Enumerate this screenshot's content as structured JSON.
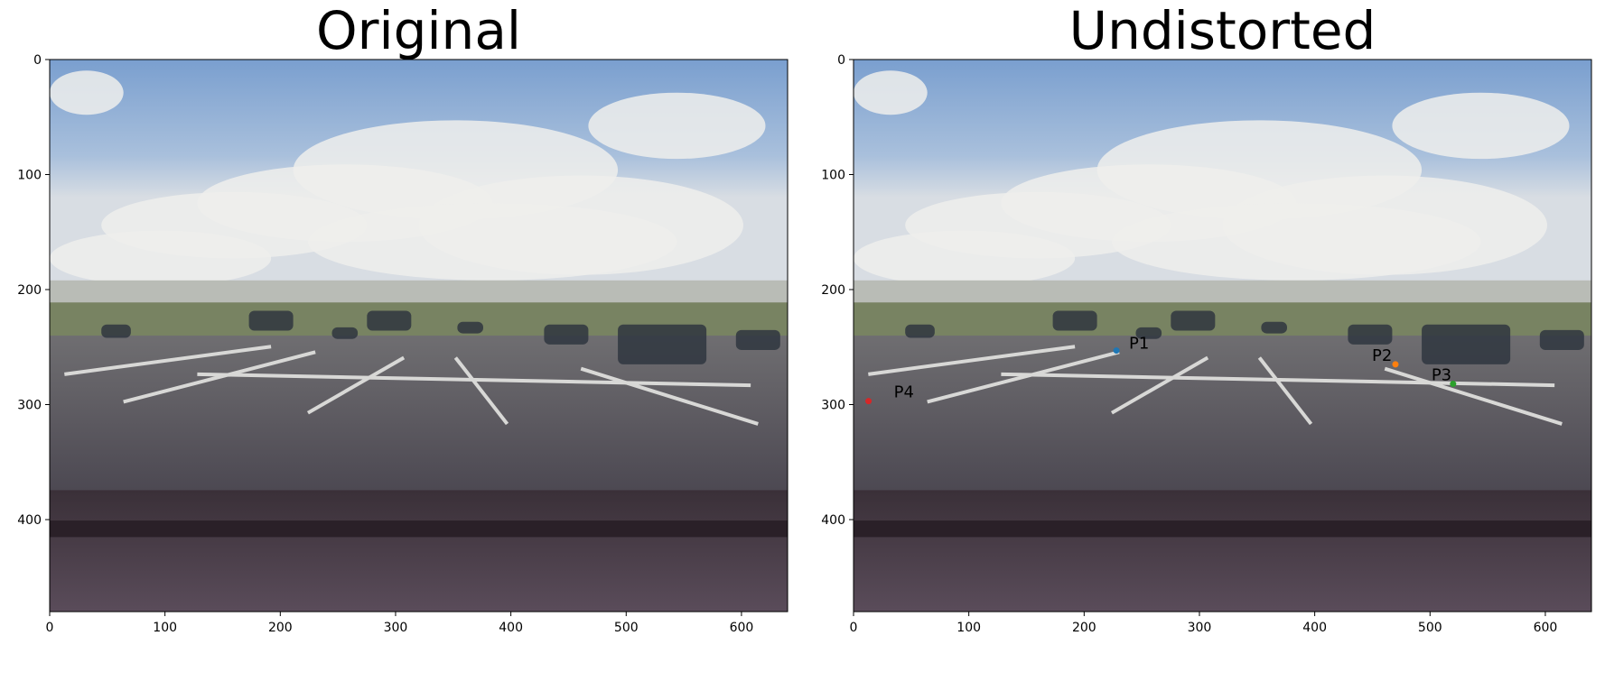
{
  "chart_data": [
    {
      "type": "image",
      "title": "Original",
      "xlim": [
        0,
        640
      ],
      "ylim": [
        480,
        0
      ],
      "xticks": [
        0,
        100,
        200,
        300,
        400,
        500,
        600
      ],
      "yticks": [
        0,
        100,
        200,
        300,
        400
      ],
      "points": []
    },
    {
      "type": "image",
      "title": "Undistorted",
      "xlim": [
        0,
        640
      ],
      "ylim": [
        480,
        0
      ],
      "xticks": [
        0,
        100,
        200,
        300,
        400,
        500,
        600
      ],
      "yticks": [
        0,
        100,
        200,
        300,
        400
      ],
      "points": [
        {
          "label": "P1",
          "x": 228,
          "y": 253,
          "color": "#1f77b4"
        },
        {
          "label": "P2",
          "x": 470,
          "y": 265,
          "color": "#ff7f0e"
        },
        {
          "label": "P3",
          "x": 520,
          "y": 282,
          "color": "#2ca02c"
        },
        {
          "label": "P4",
          "x": 13,
          "y": 297,
          "color": "#d62728"
        }
      ]
    }
  ]
}
